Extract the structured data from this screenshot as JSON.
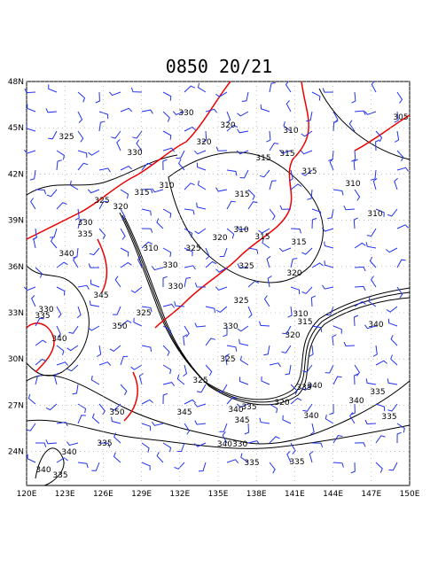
{
  "title": "0850 20/21",
  "lat_labels": [
    "48N",
    "45N",
    "42N",
    "39N",
    "36N",
    "33N",
    "30N",
    "27N",
    "24N"
  ],
  "lon_labels": [
    "120E",
    "123E",
    "126E",
    "129E",
    "132E",
    "135E",
    "138E",
    "141E",
    "144E",
    "147E",
    "150E"
  ],
  "contour_labels": [
    "305",
    "330",
    "325",
    "330",
    "320",
    "310",
    "320",
    "315",
    "315",
    "315",
    "310",
    "315",
    "310",
    "315",
    "325",
    "320",
    "330",
    "335",
    "310",
    "315",
    "320",
    "310",
    "315",
    "340",
    "310",
    "325",
    "330",
    "325",
    "320",
    "330",
    "345",
    "325",
    "330",
    "335",
    "325",
    "310",
    "315",
    "350",
    "330",
    "320",
    "340",
    "340",
    "325",
    "325",
    "335",
    "340",
    "335",
    "340",
    "320",
    "340",
    "335",
    "345",
    "345",
    "350",
    "340",
    "335",
    "335",
    "340",
    "340330",
    "340",
    "335",
    "335",
    "335"
  ]
}
